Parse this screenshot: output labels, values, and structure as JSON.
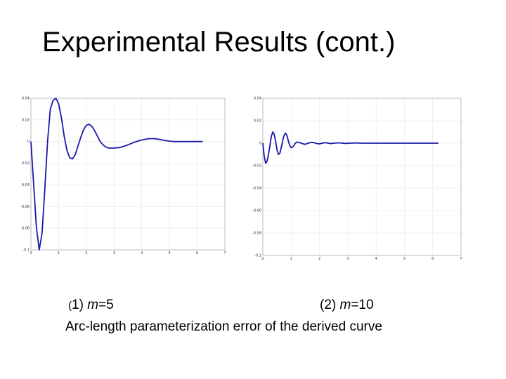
{
  "slide": {
    "title": "Experimental Results (cont.)",
    "caption1_prefix": "(",
    "caption1_body": "1) ",
    "caption1_var": "m",
    "caption1_value": "=5",
    "caption2_body": "(2) ",
    "caption2_var": "m",
    "caption2_value": "=10",
    "caption3": "Arc-length parameterization error of the derived curve"
  },
  "colors": {
    "line": "#1a1aa8",
    "grid": "#e6e6e6",
    "axis": "#aaaaaa"
  },
  "chart_data": [
    {
      "type": "line",
      "title": "",
      "xlabel": "",
      "ylabel": "",
      "xlim": [
        0,
        7
      ],
      "ylim": [
        -0.1,
        0.04
      ],
      "x_ticks": [
        "0",
        "1",
        "2",
        "3",
        "4",
        "5",
        "6",
        "7"
      ],
      "y_ticks": [
        "0.04",
        "0.02",
        "0",
        "-0.02",
        "-0.04",
        "-0.06",
        "-0.08",
        "-0.1"
      ],
      "grid": true,
      "series": [
        {
          "x": [
            0,
            0.1,
            0.2,
            0.3,
            0.4,
            0.5,
            0.6,
            0.7,
            0.8,
            0.9,
            1.0,
            1.1,
            1.2,
            1.3,
            1.4,
            1.5,
            1.6,
            1.7,
            1.8,
            1.9,
            2.0,
            2.1,
            2.2,
            2.3,
            2.4,
            2.5,
            2.6,
            2.7,
            2.8,
            2.9,
            3.0,
            3.2,
            3.4,
            3.6,
            3.8,
            4.0,
            4.2,
            4.4,
            4.6,
            4.8,
            5.0,
            5.2,
            5.4,
            5.6,
            5.8,
            6.0,
            6.2
          ],
          "y": [
            0,
            -0.04,
            -0.08,
            -0.1,
            -0.085,
            -0.045,
            0.0,
            0.03,
            0.038,
            0.04,
            0.035,
            0.022,
            0.005,
            -0.008,
            -0.015,
            -0.016,
            -0.012,
            -0.004,
            0.004,
            0.011,
            0.015,
            0.016,
            0.014,
            0.01,
            0.005,
            0.0,
            -0.003,
            -0.005,
            -0.006,
            -0.006,
            -0.006,
            -0.0055,
            -0.004,
            -0.002,
            0.0,
            0.0015,
            0.0025,
            0.0028,
            0.0022,
            0.0012,
            0.0004,
            0.0,
            0.0,
            0.0,
            0.0,
            0.0,
            0.0
          ]
        }
      ]
    },
    {
      "type": "line",
      "title": "",
      "xlabel": "",
      "ylabel": "",
      "xlim": [
        0,
        7
      ],
      "ylim": [
        -0.1,
        0.04
      ],
      "x_ticks": [
        "0",
        "1",
        "2",
        "3",
        "4",
        "5",
        "6",
        "7"
      ],
      "y_ticks": [
        "0.04",
        "0.02",
        "0",
        "-0.02",
        "-0.04",
        "-0.06",
        "-0.08",
        "-0.1"
      ],
      "grid": true,
      "series": [
        {
          "x": [
            0,
            0.05,
            0.1,
            0.15,
            0.2,
            0.25,
            0.3,
            0.35,
            0.4,
            0.45,
            0.5,
            0.55,
            0.6,
            0.65,
            0.7,
            0.75,
            0.8,
            0.85,
            0.9,
            0.95,
            1.0,
            1.05,
            1.1,
            1.15,
            1.2,
            1.3,
            1.4,
            1.5,
            1.6,
            1.7,
            1.8,
            1.9,
            2.0,
            2.1,
            2.2,
            2.3,
            2.4,
            2.5,
            2.7,
            2.9,
            3.1,
            3.3,
            3.5,
            3.7,
            4.0,
            4.5,
            5.0,
            5.5,
            6.0,
            6.2
          ],
          "y": [
            0,
            -0.012,
            -0.018,
            -0.016,
            -0.01,
            -0.002,
            0.006,
            0.01,
            0.008,
            0.002,
            -0.006,
            -0.01,
            -0.009,
            -0.004,
            0.002,
            0.007,
            0.009,
            0.007,
            0.002,
            -0.002,
            -0.004,
            -0.0035,
            -0.002,
            0.0,
            0.001,
            0.0005,
            -0.0005,
            -0.001,
            0.0,
            0.0008,
            0.0005,
            -0.0003,
            -0.0006,
            0.0,
            0.0005,
            0.0,
            -0.0004,
            0.0,
            0.0003,
            -0.0002,
            0.0,
            0.0002,
            0.0,
            0.0,
            0.0,
            0.0,
            0.0,
            0.0,
            0.0,
            0.0
          ]
        }
      ]
    }
  ]
}
